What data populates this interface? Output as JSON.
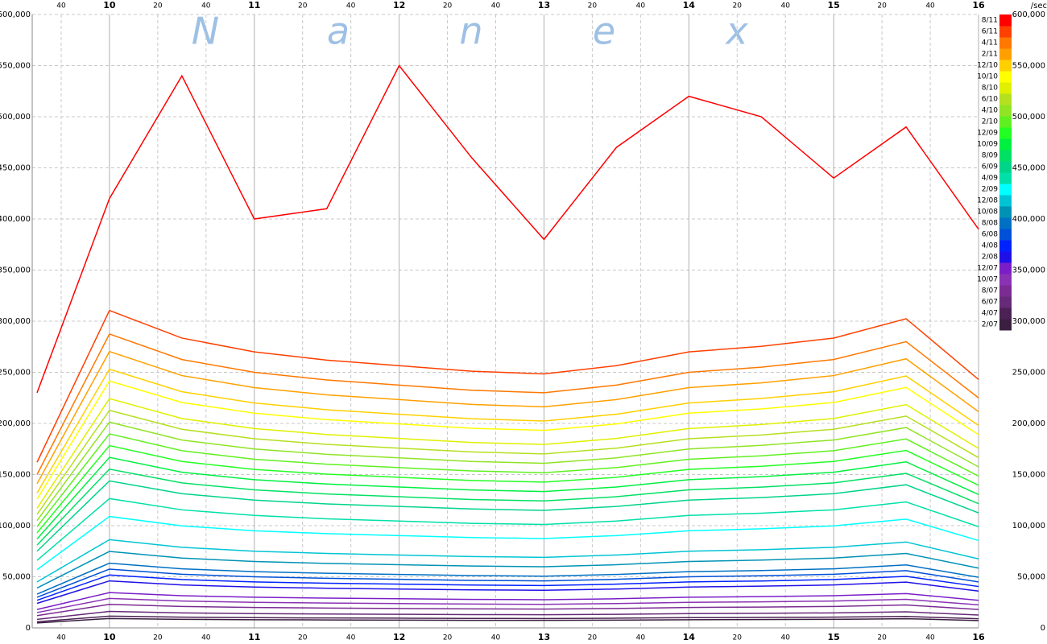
{
  "chart_data": {
    "type": "line",
    "unit": "/sec",
    "watermark": [
      "N",
      "a",
      "n",
      "e",
      "x"
    ],
    "x": [
      570,
      600,
      630,
      660,
      690,
      720,
      750,
      780,
      810,
      840,
      870,
      900,
      930,
      960
    ],
    "xlim": [
      568,
      960
    ],
    "xticks": [
      {
        "value": 580,
        "label": "40"
      },
      {
        "value": 600,
        "label": "10"
      },
      {
        "value": 620,
        "label": "20"
      },
      {
        "value": 640,
        "label": "40"
      },
      {
        "value": 660,
        "label": "11"
      },
      {
        "value": 680,
        "label": "20"
      },
      {
        "value": 700,
        "label": "40"
      },
      {
        "value": 720,
        "label": "12"
      },
      {
        "value": 740,
        "label": "20"
      },
      {
        "value": 760,
        "label": "40"
      },
      {
        "value": 780,
        "label": "13"
      },
      {
        "value": 800,
        "label": "20"
      },
      {
        "value": 820,
        "label": "40"
      },
      {
        "value": 840,
        "label": "14"
      },
      {
        "value": 860,
        "label": "20"
      },
      {
        "value": 880,
        "label": "40"
      },
      {
        "value": 900,
        "label": "15"
      },
      {
        "value": 920,
        "label": "20"
      },
      {
        "value": 940,
        "label": "40"
      },
      {
        "value": 960,
        "label": "16"
      }
    ],
    "ylim": [
      0,
      600000
    ],
    "yticks": [
      0,
      {
        "value": 50000,
        "label": "50,000"
      },
      {
        "value": 100000,
        "label": "100,000"
      },
      {
        "value": 150000,
        "label": "150,000"
      },
      {
        "value": 200000,
        "label": "200,000"
      },
      {
        "value": 250000,
        "label": "250,000"
      },
      {
        "value": 300000,
        "label": "300,000"
      },
      {
        "value": 350000,
        "label": "350,000"
      },
      {
        "value": 400000,
        "label": "400,000"
      },
      {
        "value": 450000,
        "label": "450,000"
      },
      {
        "value": 500000,
        "label": "500,000"
      },
      {
        "value": 550000,
        "label": "550,000"
      },
      {
        "value": 600000,
        "label": "600,000"
      }
    ],
    "grid": true,
    "series": [
      {
        "name": "2/07",
        "color": "#3a1f40",
        "values": [
          4800,
          9200,
          8400,
          8000,
          7800,
          7600,
          7400,
          7400,
          7600,
          8000,
          8200,
          8400,
          9000,
          7200
        ]
      },
      {
        "name": "4/07",
        "color": "#4c2155",
        "values": [
          6000,
          11500,
          10500,
          10000,
          9700,
          9500,
          9300,
          9200,
          9500,
          10000,
          10200,
          10500,
          11200,
          9000
        ]
      },
      {
        "name": "6/07",
        "color": "#662a78",
        "values": [
          8400,
          16100,
          14700,
          14000,
          13600,
          13300,
          13000,
          12900,
          13300,
          14000,
          14300,
          14700,
          15700,
          12600
        ]
      },
      {
        "name": "8/07",
        "color": "#7a2c92",
        "values": [
          12000,
          23000,
          21000,
          20000,
          19400,
          19000,
          18600,
          18400,
          19000,
          20000,
          20400,
          21000,
          22400,
          18000
        ]
      },
      {
        "name": "10/07",
        "color": "#8a32b4",
        "values": [
          15000,
          28800,
          26300,
          25000,
          24300,
          23800,
          23300,
          23000,
          23800,
          25000,
          25500,
          26300,
          28000,
          22500
        ]
      },
      {
        "name": "12/07",
        "color": "#7a1ec8",
        "values": [
          18000,
          34500,
          31500,
          30000,
          29100,
          28500,
          27900,
          27600,
          28500,
          30000,
          30600,
          31500,
          33600,
          27000
        ]
      },
      {
        "name": "2/08",
        "color": "#2010e8",
        "values": [
          24000,
          46000,
          42000,
          40000,
          38800,
          38000,
          37200,
          36800,
          38000,
          40000,
          40800,
          42000,
          44800,
          36000
        ]
      },
      {
        "name": "4/08",
        "color": "#0022ff",
        "values": [
          27000,
          51800,
          47300,
          45000,
          43700,
          42800,
          41900,
          41400,
          42800,
          45000,
          45900,
          47300,
          50400,
          40500
        ]
      },
      {
        "name": "6/08",
        "color": "#0050d8",
        "values": [
          30000,
          57500,
          52500,
          50000,
          48500,
          47500,
          46500,
          46000,
          47500,
          50000,
          51000,
          52500,
          56000,
          45000
        ]
      },
      {
        "name": "8/08",
        "color": "#0070c4",
        "values": [
          33000,
          63300,
          57800,
          55000,
          53400,
          52300,
          51200,
          50600,
          52300,
          55000,
          56100,
          57800,
          61600,
          49500
        ]
      },
      {
        "name": "10/08",
        "color": "#0092b4",
        "values": [
          39000,
          74800,
          68300,
          65000,
          63100,
          61800,
          60500,
          59800,
          61800,
          65000,
          66300,
          68300,
          72800,
          58500
        ]
      },
      {
        "name": "12/08",
        "color": "#00c4d4",
        "values": [
          45000,
          86300,
          78800,
          75000,
          72800,
          71300,
          69800,
          69000,
          71300,
          75000,
          76500,
          78800,
          84000,
          67500
        ]
      },
      {
        "name": "2/09",
        "color": "#00ffff",
        "values": [
          57000,
          109000,
          99800,
          95000,
          92200,
          90300,
          88400,
          87400,
          90300,
          95000,
          96900,
          99800,
          106400,
          85500
        ]
      },
      {
        "name": "4/09",
        "color": "#00e0a8",
        "values": [
          66000,
          126500,
          115500,
          110000,
          106700,
          104500,
          102300,
          101200,
          104500,
          110000,
          112200,
          115500,
          123200,
          99000
        ]
      },
      {
        "name": "6/09",
        "color": "#00d488",
        "values": [
          75000,
          143800,
          131300,
          125000,
          121300,
          118800,
          116300,
          115000,
          118800,
          125000,
          127500,
          131300,
          140000,
          112500
        ]
      },
      {
        "name": "8/09",
        "color": "#00e064",
        "values": [
          81000,
          155300,
          141800,
          135000,
          131000,
          128300,
          125600,
          124200,
          128300,
          135000,
          137700,
          141800,
          151200,
          121500
        ]
      },
      {
        "name": "10/09",
        "color": "#00f040",
        "values": [
          87000,
          166800,
          152300,
          145000,
          140700,
          137800,
          134900,
          133400,
          137800,
          145000,
          147900,
          152300,
          162400,
          130500
        ]
      },
      {
        "name": "12/09",
        "color": "#22ff22",
        "values": [
          93000,
          178300,
          162800,
          155000,
          150400,
          147300,
          144200,
          142600,
          147300,
          155000,
          158100,
          162800,
          173600,
          139500
        ]
      },
      {
        "name": "2/10",
        "color": "#60f020",
        "values": [
          99000,
          189800,
          173300,
          165000,
          160100,
          156800,
          153500,
          151800,
          156800,
          165000,
          168300,
          173300,
          184800,
          148500
        ]
      },
      {
        "name": "4/10",
        "color": "#90e424",
        "values": [
          105000,
          201300,
          183800,
          175000,
          169800,
          166300,
          162800,
          161000,
          166300,
          175000,
          178500,
          183800,
          196000,
          157500
        ]
      },
      {
        "name": "6/10",
        "color": "#b4e020",
        "values": [
          111000,
          212800,
          194300,
          185000,
          179500,
          175800,
          172100,
          170200,
          175800,
          185000,
          188700,
          194300,
          207200,
          166500
        ]
      },
      {
        "name": "8/10",
        "color": "#e0f000",
        "values": [
          117000,
          224300,
          204800,
          195000,
          189200,
          185300,
          181400,
          179400,
          185300,
          195000,
          198900,
          204800,
          218400,
          175500
        ]
      },
      {
        "name": "10/10",
        "color": "#ffff00",
        "values": [
          126000,
          241500,
          220500,
          210000,
          203700,
          199500,
          195300,
          193200,
          199500,
          210000,
          214200,
          220500,
          235200,
          189000
        ]
      },
      {
        "name": "12/10",
        "color": "#ffd000",
        "values": [
          132000,
          253000,
          231000,
          220000,
          213400,
          209000,
          204600,
          202400,
          209000,
          220000,
          224400,
          231000,
          246400,
          198000
        ]
      },
      {
        "name": "2/11",
        "color": "#ffa000",
        "values": [
          141000,
          270300,
          246800,
          235000,
          228000,
          223300,
          218600,
          216200,
          223300,
          235000,
          239700,
          246800,
          263200,
          211500
        ]
      },
      {
        "name": "4/11",
        "color": "#ff7800",
        "values": [
          150000,
          287500,
          262500,
          250000,
          242500,
          237500,
          232500,
          230000,
          237500,
          250000,
          255000,
          262500,
          280000,
          225000
        ]
      },
      {
        "name": "6/11",
        "color": "#ff4000",
        "values": [
          162000,
          310500,
          283500,
          270000,
          261900,
          256500,
          251100,
          248400,
          256500,
          270000,
          275400,
          283500,
          302400,
          243000
        ]
      },
      {
        "name": "8/11",
        "color": "#ff0000",
        "values": [
          230000,
          420000,
          540000,
          400000,
          410000,
          550000,
          460000,
          380000,
          470000,
          520000,
          500000,
          440000,
          490000,
          390000
        ]
      }
    ]
  }
}
